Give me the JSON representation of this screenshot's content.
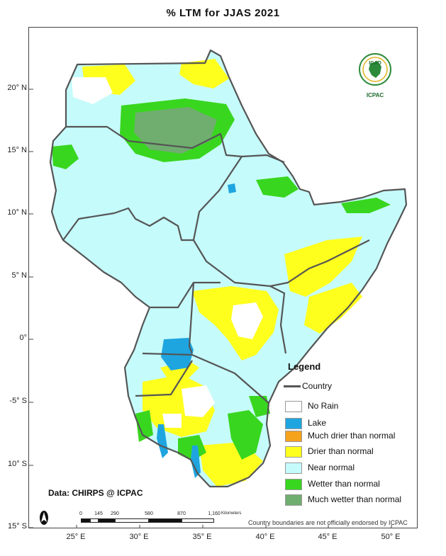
{
  "title": "% LTM  for   JJAS  2021",
  "axes": {
    "y_labels": [
      "20° N",
      "15° N",
      "10° N",
      "5° N",
      "0°",
      "-5° S",
      "10° S",
      "15° S"
    ],
    "x_labels": [
      "25° E",
      "30° E",
      "35° E",
      "40° E",
      "45° E",
      "50° E"
    ]
  },
  "logo": {
    "top_text": "IGAD",
    "bottom_text": "ICPAC",
    "icon": "igad-icpac-logo"
  },
  "legend": {
    "title": "Legend",
    "country_label": "Country",
    "items": [
      {
        "label": "No Rain",
        "color": "#ffffff"
      },
      {
        "label": "Lake",
        "color": "#1ea5e0"
      },
      {
        "label": "Much drier than normal",
        "color": "#f5a21c"
      },
      {
        "label": "Drier than normal",
        "color": "#ffff1e"
      },
      {
        "label": "Near normal",
        "color": "#c6fbfb"
      },
      {
        "label": "Wetter than normal",
        "color": "#39d61f"
      },
      {
        "label": "Much wetter than normal",
        "color": "#6fae6f"
      }
    ]
  },
  "source": "Data: CHIRPS @ ICPAC",
  "scale_bar": {
    "ticks": [
      "0",
      "145",
      "290",
      "580",
      "870",
      "1,160"
    ],
    "unit": "Kilometers"
  },
  "disclaimer": "Country boundaries are not officially endorsed by ICPAC"
}
